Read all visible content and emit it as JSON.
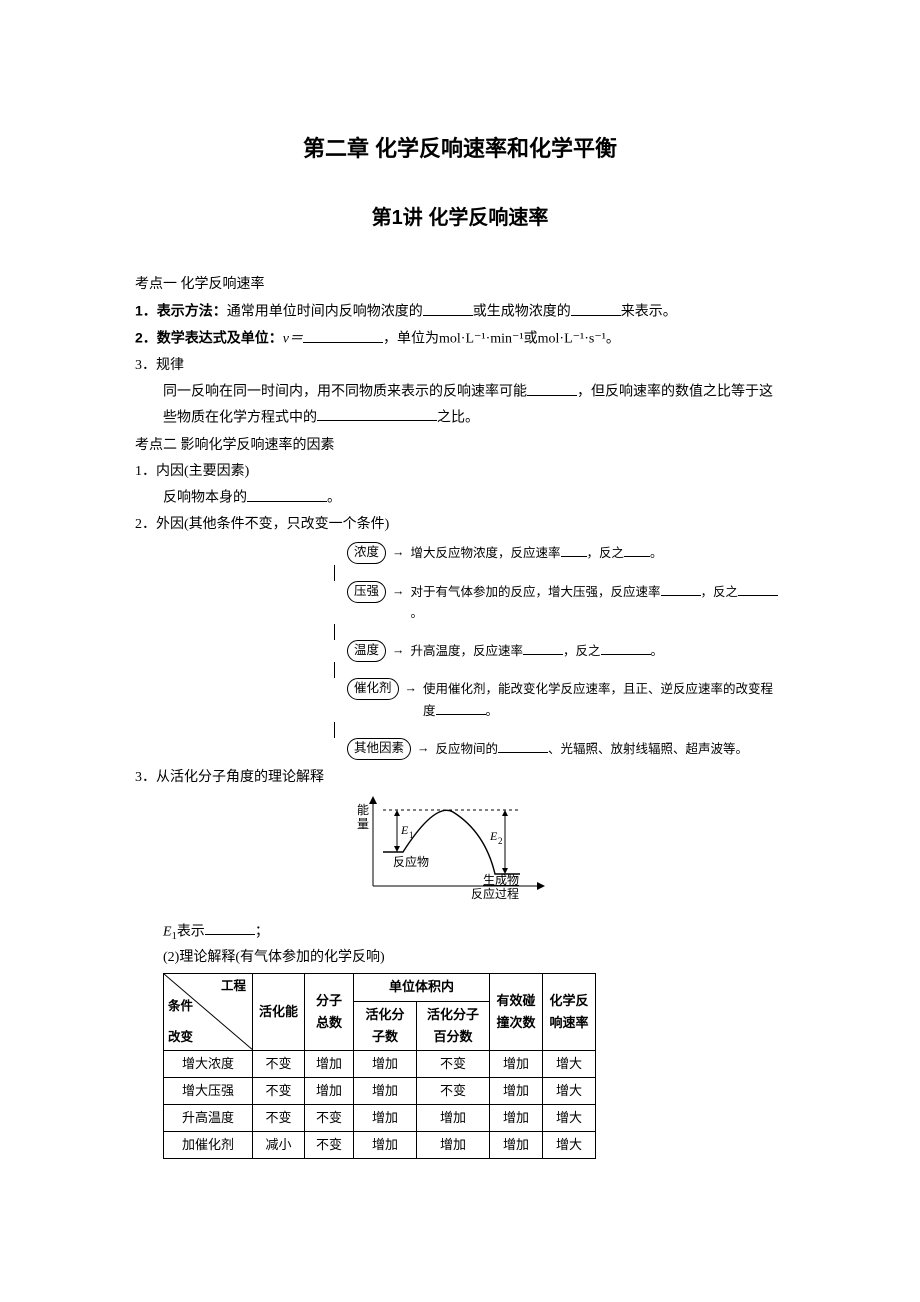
{
  "chapter_title": "第二章  化学反响速率和化学平衡",
  "lecture_title": "第1讲    化学反响速率",
  "kaodian1": "考点一    化学反响速率",
  "p1_label": "1．表示方法：",
  "p1_before": "通常用单位时间内反响物浓度的",
  "p1_mid": "或生成物浓度的",
  "p1_after": "来表示。",
  "p2_label": "2．数学表达式及单位：",
  "p2_v": "v＝",
  "p2_unit_text": "，单位为mol·L⁻¹·min⁻¹或mol·L⁻¹·s⁻¹。",
  "p3_label": "3．规律",
  "p3_text1": "同一反响在同一时间内，用不同物质来表示的反响速率可能",
  "p3_text2": "，但反响速率的数值之比等于这些物质在化学方程式中的",
  "p3_text3": "之比。",
  "kaodian2": "考点二    影响化学反响速率的因素",
  "q1_label": "1．内因(主要因素)",
  "q1_text": "反响物本身的",
  "q1_end": "。",
  "q2_label": "2．外因(其他条件不变，只改变一个条件)",
  "flow": {
    "n1": "浓度",
    "t1a": "增大反应物浓度，反应速率",
    "t1b": "，反之",
    "t1c": "。",
    "n2": "压强",
    "t2a": "对于有气体参加的反应，增大压强，反应速率",
    "t2b": "，反之",
    "t2c": "。",
    "n3": "温度",
    "t3a": "升高温度，反应速率",
    "t3b": "，反之",
    "t3c": "。",
    "n4": "催化剂",
    "t4a": "使用催化剂，能改变化学反应速率，且正、逆反应速率的改变程度",
    "t4b": "。",
    "n5": "其他因素",
    "t5a": "反应物间的",
    "t5b": "、光辐照、放射线辐照、超声波等。"
  },
  "q3_label": "3．从活化分子角度的理论解释",
  "energy": {
    "ylabel1": "能",
    "ylabel2": "量",
    "e1": "E₁",
    "e2": "E₂",
    "reactant": "反应物",
    "product": "生成物",
    "xlabel": "反应过程"
  },
  "e1_label": "E",
  "e1_sub": "1",
  "e1_text1": "表示",
  "e1_text2": "；",
  "q3_sub2": "(2)理论解释(有气体参加的化学反响)",
  "table": {
    "diag_top": "工程",
    "diag_mid": "条件",
    "diag_bot": "改变",
    "h_act": "活化能",
    "h_total": "分子总数",
    "h_unit": "单位体积内",
    "h_actnum": "活化分子数",
    "h_actpct": "活化分子百分数",
    "h_coll": "有效碰撞次数",
    "h_rate": "化学反响速率",
    "rows": [
      [
        "增大浓度",
        "不变",
        "增加",
        "增加",
        "不变",
        "增加",
        "增大"
      ],
      [
        "增大压强",
        "不变",
        "增加",
        "增加",
        "不变",
        "增加",
        "增大"
      ],
      [
        "升高温度",
        "不变",
        "不变",
        "增加",
        "增加",
        "增加",
        "增大"
      ],
      [
        "加催化剂",
        "减小",
        "不变",
        "增加",
        "增加",
        "增加",
        "增大"
      ]
    ]
  }
}
